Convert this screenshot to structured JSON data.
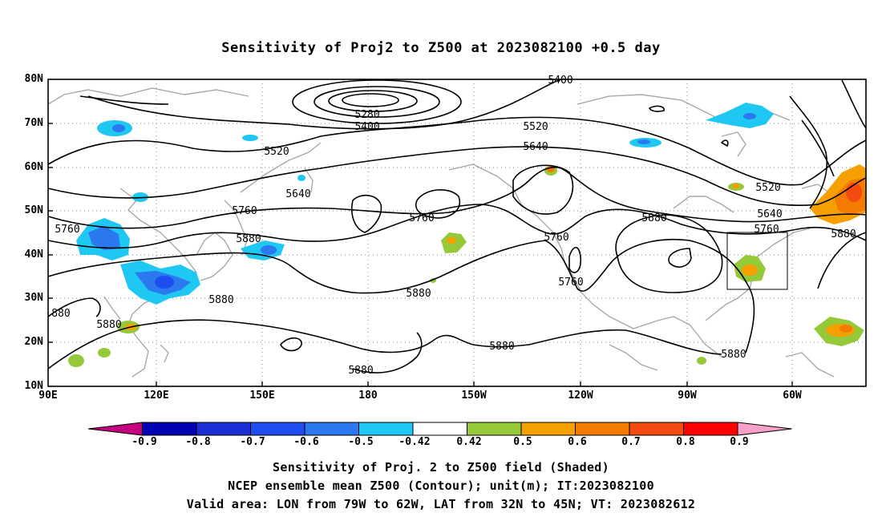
{
  "title": "Sensitivity of Proj2 to Z500 at 2023082100 +0.5 day",
  "lat_ticks": [
    "80N",
    "70N",
    "60N",
    "50N",
    "40N",
    "30N",
    "20N",
    "10N"
  ],
  "lon_ticks": [
    "90E",
    "120E",
    "150E",
    "180",
    "150W",
    "120W",
    "90W",
    "60W"
  ],
  "contour_labels": [
    "5400",
    "5280",
    "5400",
    "5520",
    "5520",
    "5640",
    "5640",
    "5760",
    "5760",
    "5880",
    "5760",
    "5760",
    "5880",
    "5760",
    "5880",
    "5640",
    "5520",
    "5760",
    "5880",
    "5880",
    "5880",
    "5880",
    "5880",
    "5880",
    "880",
    "5880"
  ],
  "colorbar": {
    "labels": [
      "-0.9",
      "-0.8",
      "-0.7",
      "-0.6",
      "-0.5",
      "-0.42",
      "0.42",
      "0.5",
      "0.6",
      "0.7",
      "0.8",
      "0.9"
    ],
    "colors": [
      "#c4007f",
      "#0000b4",
      "#1a2fd6",
      "#1f4ef0",
      "#2c78f0",
      "#1ec8f2",
      "#ffffff",
      "#95c93a",
      "#f5a000",
      "#f57b00",
      "#f54a10",
      "#ff0000",
      "#f7a0c8"
    ]
  },
  "captions": [
    "Sensitivity of Proj. 2 to Z500 field (Shaded)",
    "NCEP ensemble mean Z500 (Contour); unit(m); IT:2023082100",
    "Valid area: LON from 79W to 62W, LAT from 32N to 45N; VT: 2023082612"
  ]
}
